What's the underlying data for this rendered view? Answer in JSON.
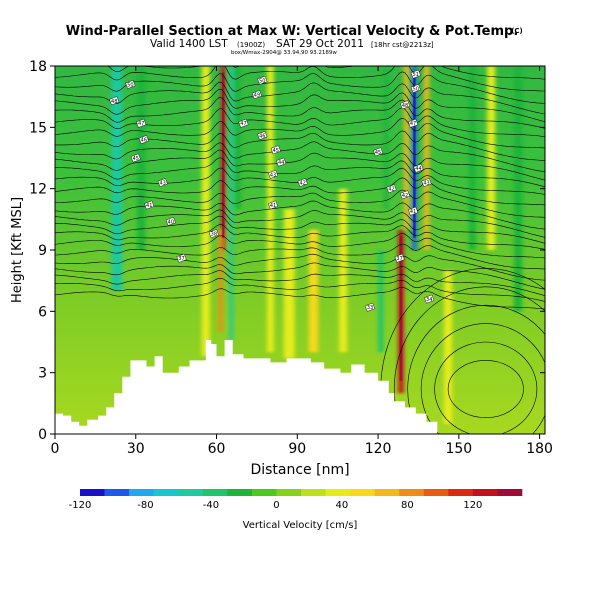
{
  "chart_data": {
    "type": "heatmap",
    "title": "Wind-Parallel Section at Max W: Vertical Velocity & Pot.Temp.",
    "copyright": "(C)",
    "subtitle_main": "Valid 1400 LST",
    "subtitle_utc": "(1900Z)",
    "subtitle_date": "SAT 29 Oct 2011",
    "subtitle_run": "[18hr cst@2213z]",
    "subtitle_detail": "box/Wmax-2904@ 33.94,90 93.2189w",
    "xlabel": "Distance [nm]",
    "ylabel": "Height [Kft MSL]",
    "xlim": [
      0,
      182
    ],
    "ylim": [
      0,
      18
    ],
    "x_ticks": [
      "0",
      "30",
      "60",
      "90",
      "120",
      "150",
      "180"
    ],
    "y_ticks": [
      "0",
      "3",
      "6",
      "9",
      "12",
      "15",
      "18"
    ],
    "colorbar": {
      "label": "Vertical Velocity [cm/s]",
      "range": [
        -120,
        150
      ],
      "tick_labels": [
        "-120",
        "-80",
        "-40",
        "0",
        "40",
        "80",
        "120"
      ],
      "colors": [
        "#1a10c8",
        "#1d5aec",
        "#1fa8ee",
        "#17c6cc",
        "#1fc9a0",
        "#20c46a",
        "#1eb43a",
        "#4cc81e",
        "#86d21a",
        "#bce01a",
        "#e6ec1a",
        "#f7d81a",
        "#f3b81a",
        "#ef8c18",
        "#e85c12",
        "#dc2a10",
        "#c2101e",
        "#a00a36"
      ]
    },
    "terrain_top_kft": [
      [
        0,
        1.0
      ],
      [
        3,
        1.0
      ],
      [
        3,
        0.9
      ],
      [
        6,
        0.9
      ],
      [
        6,
        0.6
      ],
      [
        9,
        0.6
      ],
      [
        9,
        0.4
      ],
      [
        12,
        0.4
      ],
      [
        12,
        0.7
      ],
      [
        16,
        0.7
      ],
      [
        16,
        0.9
      ],
      [
        19,
        0.9
      ],
      [
        19,
        1.3
      ],
      [
        22,
        1.3
      ],
      [
        22,
        2.0
      ],
      [
        25,
        2.0
      ],
      [
        25,
        2.8
      ],
      [
        28,
        2.8
      ],
      [
        28,
        3.6
      ],
      [
        34,
        3.6
      ],
      [
        34,
        3.3
      ],
      [
        37,
        3.3
      ],
      [
        37,
        3.8
      ],
      [
        40,
        3.8
      ],
      [
        40,
        3.0
      ],
      [
        46,
        3.0
      ],
      [
        46,
        3.3
      ],
      [
        50,
        3.3
      ],
      [
        50,
        3.6
      ],
      [
        56,
        3.6
      ],
      [
        56,
        4.6
      ],
      [
        58,
        4.6
      ],
      [
        58,
        4.4
      ],
      [
        60,
        4.4
      ],
      [
        60,
        3.8
      ],
      [
        63,
        3.8
      ],
      [
        63,
        4.6
      ],
      [
        66,
        4.6
      ],
      [
        66,
        3.9
      ],
      [
        70,
        3.9
      ],
      [
        70,
        3.7
      ],
      [
        80,
        3.7
      ],
      [
        80,
        3.5
      ],
      [
        86,
        3.5
      ],
      [
        86,
        3.7
      ],
      [
        95,
        3.7
      ],
      [
        95,
        3.5
      ],
      [
        100,
        3.5
      ],
      [
        100,
        3.2
      ],
      [
        106,
        3.2
      ],
      [
        106,
        3.0
      ],
      [
        110,
        3.0
      ],
      [
        110,
        3.4
      ],
      [
        115,
        3.4
      ],
      [
        115,
        3.0
      ],
      [
        120,
        3.0
      ],
      [
        120,
        2.6
      ],
      [
        124,
        2.6
      ],
      [
        124,
        2.0
      ],
      [
        126,
        2.0
      ],
      [
        126,
        1.6
      ],
      [
        130,
        1.6
      ],
      [
        130,
        1.3
      ],
      [
        134,
        1.3
      ],
      [
        134,
        1.0
      ],
      [
        138,
        1.0
      ],
      [
        138,
        0.6
      ],
      [
        142,
        0.6
      ],
      [
        142,
        0.0
      ],
      [
        182,
        0.0
      ]
    ],
    "features": [
      {
        "name": "downdraft",
        "x": 23,
        "y0": 7,
        "y1": 18,
        "w": 4,
        "value": -50
      },
      {
        "name": "downdraft",
        "x": 32,
        "y0": 9,
        "y1": 18,
        "w": 3,
        "value": -30
      },
      {
        "name": "updraft",
        "x": 56,
        "y0": 3.8,
        "y1": 18,
        "w": 3,
        "value": 35
      },
      {
        "name": "updraft core",
        "x": 62.5,
        "y0": 9,
        "y1": 18,
        "w": 1.6,
        "value": 125
      },
      {
        "name": "updraft core lower",
        "x": 61.5,
        "y0": 5,
        "y1": 10,
        "w": 1.5,
        "value": 85
      },
      {
        "name": "downdraft",
        "x": 65.5,
        "y0": 4.6,
        "y1": 18,
        "w": 1.4,
        "value": -55
      },
      {
        "name": "downdraft",
        "x": 68,
        "y0": 11,
        "y1": 18,
        "w": 2,
        "value": -30
      },
      {
        "name": "updraft",
        "x": 80,
        "y0": 4,
        "y1": 18,
        "w": 2.5,
        "value": 30
      },
      {
        "name": "updraft",
        "x": 87,
        "y0": 3.7,
        "y1": 11,
        "w": 4,
        "value": 30
      },
      {
        "name": "updraft",
        "x": 96,
        "y0": 4,
        "y1": 10,
        "w": 3.5,
        "value": 55
      },
      {
        "name": "updraft",
        "x": 107,
        "y0": 4,
        "y1": 12,
        "w": 3,
        "value": 35
      },
      {
        "name": "downdraft",
        "x": 121,
        "y0": 4,
        "y1": 9,
        "w": 2,
        "value": -45
      },
      {
        "name": "downdraft",
        "x": 123,
        "y0": 11,
        "y1": 18,
        "w": 1.5,
        "value": -25
      },
      {
        "name": "updraft core",
        "x": 128.5,
        "y0": 2,
        "y1": 10,
        "w": 2,
        "value": 120
      },
      {
        "name": "updraft",
        "x": 130.5,
        "y0": 10,
        "y1": 18,
        "w": 1.8,
        "value": 60
      },
      {
        "name": "downdraft core",
        "x": 133.5,
        "y0": 9,
        "y1": 18,
        "w": 1.6,
        "value": -95
      },
      {
        "name": "updraft",
        "x": 138,
        "y0": 9,
        "y1": 18,
        "w": 2,
        "value": 65
      },
      {
        "name": "updraft",
        "x": 146,
        "y0": 0.5,
        "y1": 8,
        "w": 3,
        "value": 30
      },
      {
        "name": "downdraft",
        "x": 155,
        "y0": 9,
        "y1": 18,
        "w": 2.5,
        "value": -25
      },
      {
        "name": "updraft",
        "x": 162,
        "y0": 9,
        "y1": 18,
        "w": 3,
        "value": 30
      },
      {
        "name": "downdraft",
        "x": 172,
        "y0": 6,
        "y1": 18,
        "w": 3,
        "value": -25
      }
    ],
    "contour_labels": [
      {
        "x": 28,
        "y": 17.1,
        "text": "50"
      },
      {
        "x": 22,
        "y": 16.3,
        "text": "48"
      },
      {
        "x": 32,
        "y": 15.2,
        "text": "47"
      },
      {
        "x": 33,
        "y": 14.4,
        "text": "46"
      },
      {
        "x": 30,
        "y": 13.5,
        "text": "45"
      },
      {
        "x": 40,
        "y": 12.3,
        "text": "43"
      },
      {
        "x": 35,
        "y": 11.2,
        "text": "41"
      },
      {
        "x": 43,
        "y": 10.4,
        "text": "40"
      },
      {
        "x": 47,
        "y": 8.6,
        "text": "37"
      },
      {
        "x": 59,
        "y": 9.8,
        "text": "38"
      },
      {
        "x": 77,
        "y": 17.3,
        "text": "50"
      },
      {
        "x": 75,
        "y": 16.6,
        "text": "49"
      },
      {
        "x": 70,
        "y": 15.2,
        "text": "47"
      },
      {
        "x": 77,
        "y": 14.6,
        "text": "46"
      },
      {
        "x": 82,
        "y": 13.9,
        "text": "45"
      },
      {
        "x": 84,
        "y": 13.3,
        "text": "44"
      },
      {
        "x": 81,
        "y": 12.7,
        "text": "43"
      },
      {
        "x": 92,
        "y": 12.3,
        "text": "42"
      },
      {
        "x": 81,
        "y": 11.2,
        "text": "41"
      },
      {
        "x": 134,
        "y": 17.6,
        "text": "51"
      },
      {
        "x": 134,
        "y": 16.9,
        "text": "50"
      },
      {
        "x": 130,
        "y": 16.1,
        "text": "48"
      },
      {
        "x": 133,
        "y": 15.2,
        "text": "47"
      },
      {
        "x": 120,
        "y": 13.8,
        "text": "45"
      },
      {
        "x": 135,
        "y": 13.0,
        "text": "44"
      },
      {
        "x": 125,
        "y": 12.0,
        "text": "42"
      },
      {
        "x": 138,
        "y": 12.3,
        "text": "43"
      },
      {
        "x": 130,
        "y": 11.7,
        "text": "42"
      },
      {
        "x": 133,
        "y": 10.9,
        "text": "41"
      },
      {
        "x": 128,
        "y": 8.6,
        "text": "37"
      },
      {
        "x": 139,
        "y": 6.6,
        "text": "34"
      },
      {
        "x": 117,
        "y": 6.2,
        "text": "33"
      }
    ],
    "colors": {
      "background": "#1fb85a",
      "terrain": "#ffffff",
      "contour": "#000000",
      "frame": "#000000"
    }
  }
}
